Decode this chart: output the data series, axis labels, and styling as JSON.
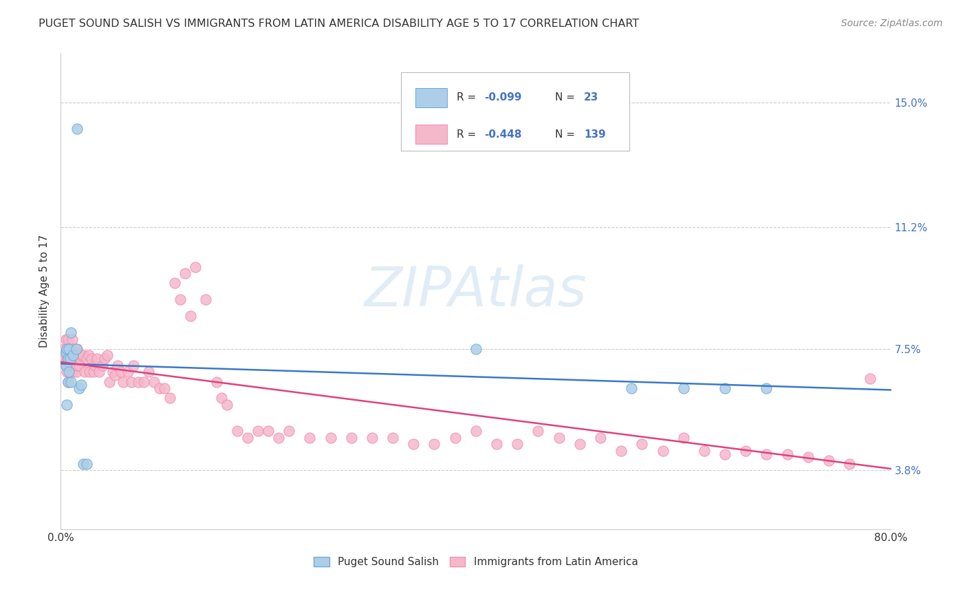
{
  "title": "PUGET SOUND SALISH VS IMMIGRANTS FROM LATIN AMERICA DISABILITY AGE 5 TO 17 CORRELATION CHART",
  "source": "Source: ZipAtlas.com",
  "ylabel": "Disability Age 5 to 17",
  "xlim": [
    0.0,
    0.8
  ],
  "ylim": [
    0.02,
    0.165
  ],
  "yticks": [
    0.038,
    0.075,
    0.112,
    0.15
  ],
  "ytick_labels": [
    "3.8%",
    "7.5%",
    "11.2%",
    "15.0%"
  ],
  "xticks": [
    0.0,
    0.2,
    0.4,
    0.6,
    0.8
  ],
  "xtick_labels": [
    "0.0%",
    "",
    "",
    "",
    "80.0%"
  ],
  "blue_color": "#aecde8",
  "pink_color": "#f4b8cb",
  "blue_edge_color": "#6baed6",
  "pink_edge_color": "#f48fb1",
  "blue_line_color": "#3a78c9",
  "pink_line_color": "#e0417e",
  "watermark": "ZIPAtlas",
  "background_color": "#ffffff",
  "blue_x": [
    0.005,
    0.005,
    0.006,
    0.006,
    0.007,
    0.007,
    0.008,
    0.008,
    0.009,
    0.01,
    0.01,
    0.012,
    0.015,
    0.016,
    0.018,
    0.02,
    0.022,
    0.025,
    0.4,
    0.55,
    0.6,
    0.64,
    0.68
  ],
  "blue_y": [
    0.074,
    0.07,
    0.075,
    0.058,
    0.072,
    0.065,
    0.075,
    0.068,
    0.072,
    0.08,
    0.065,
    0.073,
    0.075,
    0.142,
    0.063,
    0.064,
    0.04,
    0.04,
    0.075,
    0.063,
    0.063,
    0.063,
    0.063
  ],
  "pink_x": [
    0.003,
    0.004,
    0.005,
    0.005,
    0.006,
    0.006,
    0.006,
    0.007,
    0.007,
    0.007,
    0.008,
    0.008,
    0.009,
    0.009,
    0.01,
    0.01,
    0.011,
    0.011,
    0.012,
    0.012,
    0.013,
    0.013,
    0.014,
    0.015,
    0.015,
    0.016,
    0.016,
    0.017,
    0.018,
    0.019,
    0.02,
    0.022,
    0.023,
    0.025,
    0.027,
    0.028,
    0.03,
    0.032,
    0.033,
    0.035,
    0.037,
    0.04,
    0.042,
    0.045,
    0.047,
    0.05,
    0.052,
    0.055,
    0.058,
    0.06,
    0.065,
    0.068,
    0.07,
    0.075,
    0.08,
    0.085,
    0.09,
    0.095,
    0.1,
    0.105,
    0.11,
    0.115,
    0.12,
    0.125,
    0.13,
    0.14,
    0.15,
    0.155,
    0.16,
    0.17,
    0.18,
    0.19,
    0.2,
    0.21,
    0.22,
    0.24,
    0.26,
    0.28,
    0.3,
    0.32,
    0.34,
    0.36,
    0.38,
    0.4,
    0.42,
    0.44,
    0.46,
    0.48,
    0.5,
    0.52,
    0.54,
    0.56,
    0.58,
    0.6,
    0.62,
    0.64,
    0.66,
    0.68,
    0.7,
    0.72,
    0.74,
    0.76,
    0.78
  ],
  "pink_y": [
    0.075,
    0.072,
    0.078,
    0.07,
    0.075,
    0.072,
    0.068,
    0.078,
    0.072,
    0.065,
    0.075,
    0.07,
    0.075,
    0.07,
    0.075,
    0.068,
    0.078,
    0.07,
    0.075,
    0.068,
    0.075,
    0.07,
    0.073,
    0.072,
    0.068,
    0.075,
    0.07,
    0.073,
    0.07,
    0.072,
    0.073,
    0.073,
    0.068,
    0.072,
    0.073,
    0.068,
    0.072,
    0.068,
    0.07,
    0.072,
    0.068,
    0.07,
    0.072,
    0.073,
    0.065,
    0.068,
    0.067,
    0.07,
    0.068,
    0.065,
    0.068,
    0.065,
    0.07,
    0.065,
    0.065,
    0.068,
    0.065,
    0.063,
    0.063,
    0.06,
    0.095,
    0.09,
    0.098,
    0.085,
    0.1,
    0.09,
    0.065,
    0.06,
    0.058,
    0.05,
    0.048,
    0.05,
    0.05,
    0.048,
    0.05,
    0.048,
    0.048,
    0.048,
    0.048,
    0.048,
    0.046,
    0.046,
    0.048,
    0.05,
    0.046,
    0.046,
    0.05,
    0.048,
    0.046,
    0.048,
    0.044,
    0.046,
    0.044,
    0.048,
    0.044,
    0.043,
    0.044,
    0.043,
    0.043,
    0.042,
    0.041,
    0.04,
    0.066
  ],
  "blue_line_x": [
    0.0,
    0.8
  ],
  "blue_line_y": [
    0.0705,
    0.0625
  ],
  "pink_line_x": [
    0.0,
    0.8
  ],
  "pink_line_y": [
    0.071,
    0.0385
  ]
}
